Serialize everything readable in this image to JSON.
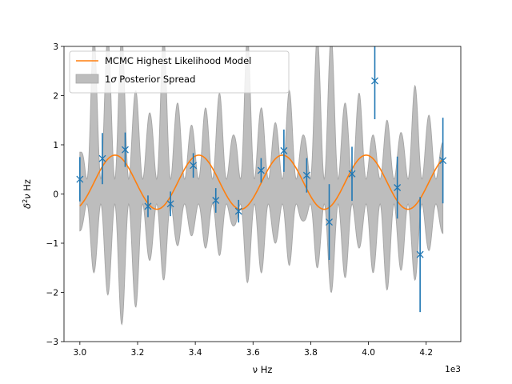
{
  "chart_data": {
    "type": "scatter",
    "title": "",
    "xlabel": "ν Hz",
    "ylabel": "δ²ν Hz",
    "x_offset_label": "1e3",
    "xlim": [
      2.945,
      4.32
    ],
    "ylim": [
      -3,
      3
    ],
    "x_ticks": [
      3.0,
      3.2,
      3.4,
      3.6,
      3.8,
      4.0,
      4.2
    ],
    "x_tick_labels": [
      "3.0",
      "3.2",
      "3.4",
      "3.6",
      "3.8",
      "4.0",
      "4.2"
    ],
    "y_ticks": [
      -3,
      -2,
      -1,
      0,
      1,
      2,
      3
    ],
    "y_tick_labels": [
      "−3",
      "−2",
      "−1",
      "0",
      "1",
      "2",
      "3"
    ],
    "grid": false,
    "legend_position": "top-left",
    "colors": {
      "data": "#1f77b4",
      "model": "#ff7f0e",
      "spread_fill": "#bdbdbd",
      "spread_edge": "#a8a8a8"
    },
    "series": [
      {
        "name": "",
        "kind": "errorbar",
        "x": [
          3.0,
          3.078,
          3.157,
          3.236,
          3.314,
          3.393,
          3.471,
          3.55,
          3.628,
          3.707,
          3.786,
          3.864,
          3.943,
          4.022,
          4.1,
          4.179,
          4.258
        ],
        "y": [
          0.3,
          0.72,
          0.9,
          -0.25,
          -0.2,
          0.58,
          -0.13,
          -0.35,
          0.48,
          0.88,
          0.38,
          -0.57,
          0.41,
          2.3,
          0.13,
          -1.23,
          0.68
        ],
        "yerr": [
          0.45,
          0.52,
          0.35,
          0.22,
          0.25,
          0.25,
          0.25,
          0.23,
          0.25,
          0.43,
          0.35,
          0.77,
          0.55,
          0.78,
          0.63,
          1.17,
          0.87
        ]
      },
      {
        "name": "MCMC Highest Likelihood Model",
        "kind": "line",
        "x_start": 3.0,
        "x_end": 4.258,
        "mean": 0.24,
        "amplitude": 0.55,
        "period": 0.29,
        "peak_x": 3.122
      },
      {
        "name": "1σ Posterior Spread",
        "kind": "band",
        "x_start": 3.0,
        "x_end": 4.258,
        "upper_peaks": [
          0.85,
          3.2,
          3.2,
          3.2,
          2.1,
          1.65,
          3.2,
          1.85,
          1.4,
          1.75,
          2.05,
          1.2,
          3.2,
          1.75,
          1.45,
          2.1,
          1.2,
          3.2,
          3.2,
          1.85,
          2.05,
          1.2,
          1.5,
          1.25,
          2.2,
          1.6,
          1.05
        ],
        "lower_troughs": [
          -0.75,
          -1.6,
          -2.05,
          -2.65,
          -2.3,
          -1.35,
          -1.75,
          -1.05,
          -0.85,
          -1.1,
          -1.25,
          -0.65,
          -1.8,
          -1.6,
          -1.0,
          -1.45,
          -0.55,
          -1.5,
          -2.0,
          -1.7,
          -1.1,
          -1.6,
          -1.95,
          -1.55,
          -1.75,
          -1.15,
          -0.8
        ]
      }
    ]
  }
}
